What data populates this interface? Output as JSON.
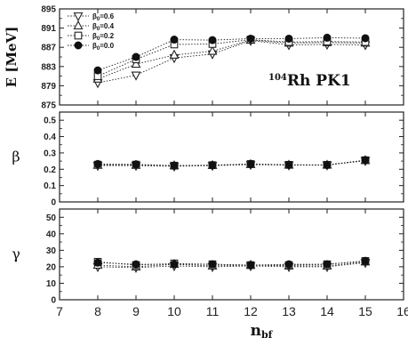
{
  "chart_data": {
    "type": "line",
    "xlabel_main": "n",
    "xlabel_sub": "bf",
    "xlim": [
      7,
      16
    ],
    "x_ticks": [
      "7",
      "8",
      "9",
      "10",
      "11",
      "12",
      "13",
      "14",
      "15",
      "16"
    ],
    "panels": [
      {
        "id": "energy",
        "ylabel": "E [MeV]",
        "ylim": [
          875,
          895
        ],
        "y_ticks": [
          "875",
          "879",
          "883",
          "887",
          "891",
          "895"
        ],
        "annotation_sup": "104",
        "annotation_main": "Rh  PK1",
        "x": [
          8,
          9,
          10,
          11,
          12,
          13,
          14,
          15
        ],
        "series": [
          {
            "name": "0.6",
            "marker": "triangle-down",
            "values": [
              879.6,
              881.2,
              884.8,
              885.6,
              888.4,
              887.5,
              887.6,
              887.5
            ]
          },
          {
            "name": "0.4",
            "marker": "triangle-up",
            "values": [
              880.4,
              883.5,
              885.4,
              886.2,
              888.5,
              887.9,
              888.0,
              887.9
            ]
          },
          {
            "name": "0.2",
            "marker": "square",
            "values": [
              881.0,
              884.5,
              887.6,
              887.7,
              888.6,
              888.1,
              888.2,
              888.1
            ]
          },
          {
            "name": "0.0",
            "marker": "circle",
            "values": [
              882.2,
              885.0,
              888.6,
              888.5,
              888.8,
              888.8,
              889.0,
              888.9
            ]
          }
        ]
      },
      {
        "id": "beta",
        "ylabel": "β",
        "ylim": [
          0,
          0.55
        ],
        "y_ticks": [
          "0",
          "0.1",
          "0.2",
          "0.3",
          "0.4",
          "0.5"
        ],
        "x": [
          8,
          9,
          10,
          11,
          12,
          13,
          14,
          15
        ],
        "series": [
          {
            "marker": "triangle-down",
            "values": [
              0.222,
              0.222,
              0.218,
              0.222,
              0.228,
              0.225,
              0.225,
              0.252
            ]
          },
          {
            "marker": "triangle-up",
            "values": [
              0.225,
              0.225,
              0.222,
              0.224,
              0.23,
              0.226,
              0.226,
              0.254
            ]
          },
          {
            "marker": "square",
            "values": [
              0.228,
              0.228,
              0.222,
              0.225,
              0.232,
              0.227,
              0.227,
              0.255
            ]
          },
          {
            "marker": "circle",
            "values": [
              0.232,
              0.23,
              0.222,
              0.225,
              0.232,
              0.227,
              0.226,
              0.256
            ]
          }
        ]
      },
      {
        "id": "gamma",
        "ylabel": "γ",
        "ylim": [
          0,
          55
        ],
        "y_ticks": [
          "0",
          "10",
          "20",
          "30",
          "40",
          "50"
        ],
        "x": [
          8,
          9,
          10,
          11,
          12,
          13,
          14,
          15
        ],
        "series": [
          {
            "marker": "triangle-down",
            "values": [
              20.0,
              19.5,
              20.5,
              20.0,
              20.5,
              20.0,
              20.0,
              22.5
            ]
          },
          {
            "marker": "triangle-up",
            "values": [
              21.0,
              20.0,
              21.5,
              20.5,
              21.0,
              20.5,
              20.5,
              23.0
            ]
          },
          {
            "marker": "square",
            "values": [
              23.0,
              21.0,
              22.0,
              21.5,
              21.0,
              21.0,
              21.5,
              23.5
            ]
          },
          {
            "marker": "circle",
            "values": [
              22.5,
              21.5,
              21.5,
              21.5,
              21.0,
              21.5,
              21.5,
              23.5
            ]
          }
        ]
      }
    ],
    "legend": {
      "placement": "top-left",
      "symbol": "β",
      "subscript": "0",
      "entries": [
        "=0.6",
        "=0.4",
        "=0.2",
        "=0.0"
      ]
    }
  }
}
